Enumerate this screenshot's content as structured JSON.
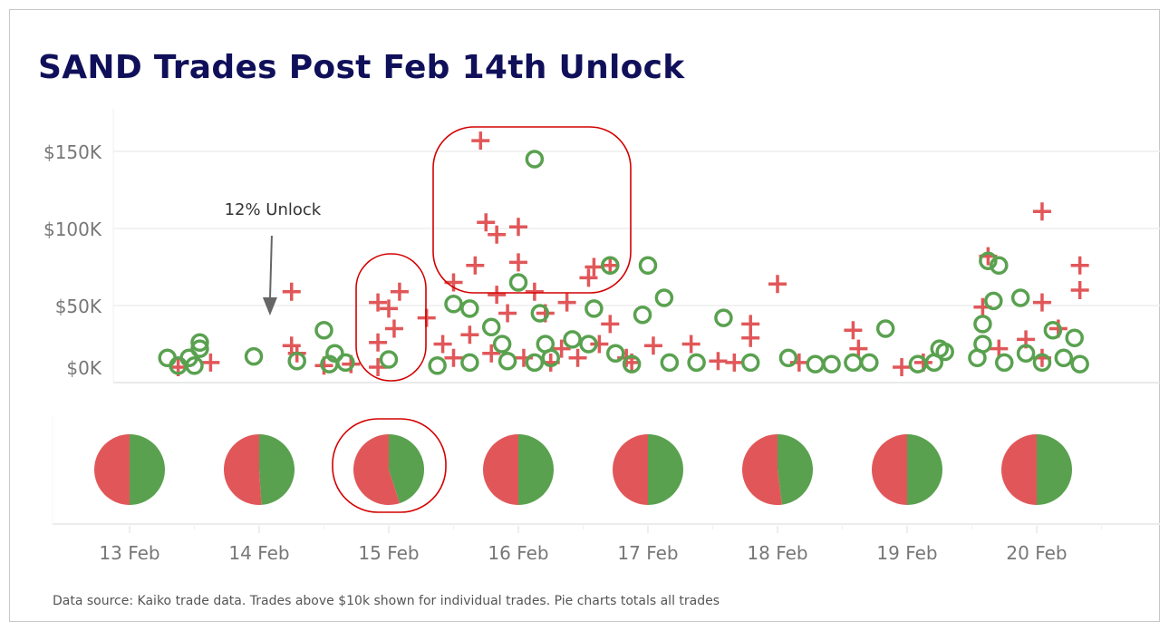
{
  "chart_data": {
    "type": "scatter",
    "title": "SAND Trades Post Feb 14th Unlock",
    "footer": "Data source: Kaiko trade data. Trades above $10k shown for individual trades. Pie charts totals all trades",
    "xlabel": "",
    "ylabel": "",
    "x_ticks": [
      "13 Feb",
      "14 Feb",
      "15 Feb",
      "16 Feb",
      "17 Feb",
      "18 Feb",
      "19 Feb",
      "20 Feb"
    ],
    "y_ticks": [
      {
        "value": 0,
        "label": "$0K"
      },
      {
        "value": 50,
        "label": "$50K"
      },
      {
        "value": 100,
        "label": "$100K"
      },
      {
        "value": 150,
        "label": "$150K"
      }
    ],
    "y_unit": "$K",
    "ylim": [
      0,
      165
    ],
    "grid": true,
    "colors": {
      "red": "#e15759",
      "green": "#59a14f",
      "highlight": "#d40000",
      "title": "#10105a"
    },
    "annotation": {
      "text": "12% Unlock",
      "date": "14 Feb 02:00"
    },
    "series": [
      {
        "marker": "plus",
        "color": "#e15759",
        "points": [
          [
            "13 Feb 15:00",
            13
          ],
          [
            "13 Feb 09:00",
            10
          ],
          [
            "14 Feb 06:00",
            59
          ],
          [
            "14 Feb 06:00",
            24
          ],
          [
            "14 Feb 07:00",
            19
          ],
          [
            "14 Feb 12:00",
            11
          ],
          [
            "14 Feb 17:00",
            12
          ],
          [
            "14 Feb 22:00",
            52
          ],
          [
            "15 Feb 02:00",
            59
          ],
          [
            "15 Feb 00:00",
            48
          ],
          [
            "15 Feb 01:00",
            35
          ],
          [
            "14 Feb 22:00",
            26
          ],
          [
            "14 Feb 22:00",
            10
          ],
          [
            "15 Feb 17:00",
            157
          ],
          [
            "15 Feb 18:00",
            104
          ],
          [
            "15 Feb 20:00",
            96
          ],
          [
            "16 Feb 00:00",
            101
          ],
          [
            "15 Feb 16:00",
            76
          ],
          [
            "16 Feb 00:00",
            78
          ],
          [
            "15 Feb 12:00",
            65
          ],
          [
            "15 Feb 20:00",
            57
          ],
          [
            "16 Feb 03:00",
            59
          ],
          [
            "16 Feb 09:00",
            52
          ],
          [
            "16 Feb 13:00",
            68
          ],
          [
            "16 Feb 14:00",
            75
          ],
          [
            "16 Feb 17:00",
            76
          ],
          [
            "16 Feb 17:00",
            38
          ],
          [
            "17 Feb 01:00",
            24
          ],
          [
            "17 Feb 08:00",
            25
          ],
          [
            "17 Feb 19:00",
            38
          ],
          [
            "17 Feb 19:00",
            29
          ],
          [
            "18 Feb 00:00",
            64
          ],
          [
            "18 Feb 14:00",
            34
          ],
          [
            "18 Feb 23:00",
            10
          ],
          [
            "19 Feb 15:00",
            82
          ],
          [
            "19 Feb 14:00",
            49
          ],
          [
            "20 Feb 01:00",
            111
          ],
          [
            "20 Feb 01:00",
            52
          ],
          [
            "20 Feb 08:00",
            76
          ],
          [
            "20 Feb 08:00",
            60
          ],
          [
            "20 Feb 04:00",
            35
          ],
          [
            "15 Feb 10:00",
            25
          ],
          [
            "15 Feb 12:00",
            16
          ],
          [
            "15 Feb 15:00",
            31
          ],
          [
            "15 Feb 22:00",
            45
          ],
          [
            "16 Feb 05:00",
            45
          ],
          [
            "16 Feb 11:00",
            16
          ],
          [
            "16 Feb 21:00",
            13
          ],
          [
            "17 Feb 13:00",
            14
          ],
          [
            "17 Feb 16:00",
            13
          ],
          [
            "18 Feb 04:00",
            13
          ],
          [
            "18 Feb 15:00",
            22
          ],
          [
            "19 Feb 03:00",
            13
          ],
          [
            "19 Feb 17:00",
            22
          ],
          [
            "19 Feb 22:00",
            28
          ],
          [
            "20 Feb 01:00",
            16
          ],
          [
            "15 Feb 07:00",
            42
          ],
          [
            "16 Feb 08:00",
            22
          ],
          [
            "16 Feb 01:00",
            16
          ],
          [
            "16 Feb 15:00",
            25
          ],
          [
            "15 Feb 19:00",
            19
          ],
          [
            "16 Feb 06:00",
            13
          ],
          [
            "16 Feb 20:00",
            16
          ]
        ]
      },
      {
        "marker": "circle",
        "color": "#59a14f",
        "points": [
          [
            "13 Feb 07:00",
            16
          ],
          [
            "13 Feb 09:00",
            11
          ],
          [
            "13 Feb 11:00",
            16
          ],
          [
            "13 Feb 13:00",
            22
          ],
          [
            "13 Feb 12:00",
            11
          ],
          [
            "13 Feb 13:00",
            26
          ],
          [
            "13 Feb 23:00",
            17
          ],
          [
            "14 Feb 07:00",
            14
          ],
          [
            "14 Feb 12:00",
            34
          ],
          [
            "14 Feb 13:00",
            12
          ],
          [
            "14 Feb 14:00",
            19
          ],
          [
            "14 Feb 16:00",
            13
          ],
          [
            "15 Feb 00:00",
            15
          ],
          [
            "16 Feb 03:00",
            145
          ],
          [
            "16 Feb 00:00",
            65
          ],
          [
            "16 Feb 04:00",
            45
          ],
          [
            "16 Feb 14:00",
            48
          ],
          [
            "16 Feb 17:00",
            76
          ],
          [
            "17 Feb 00:00",
            76
          ],
          [
            "17 Feb 03:00",
            55
          ],
          [
            "16 Feb 23:00",
            44
          ],
          [
            "17 Feb 14:00",
            42
          ],
          [
            "18 Feb 20:00",
            35
          ],
          [
            "19 Feb 14:00",
            38
          ],
          [
            "19 Feb 15:00",
            79
          ],
          [
            "19 Feb 17:00",
            76
          ],
          [
            "19 Feb 16:00",
            53
          ],
          [
            "19 Feb 21:00",
            55
          ],
          [
            "20 Feb 03:00",
            34
          ],
          [
            "20 Feb 07:00",
            29
          ],
          [
            "15 Feb 09:00",
            11
          ],
          [
            "15 Feb 12:00",
            51
          ],
          [
            "15 Feb 15:00",
            48
          ],
          [
            "15 Feb 19:00",
            36
          ],
          [
            "15 Feb 21:00",
            25
          ],
          [
            "16 Feb 05:00",
            25
          ],
          [
            "16 Feb 10:00",
            28
          ],
          [
            "16 Feb 13:00",
            25
          ],
          [
            "16 Feb 18:00",
            19
          ],
          [
            "17 Feb 04:00",
            13
          ],
          [
            "17 Feb 09:00",
            13
          ],
          [
            "17 Feb 19:00",
            13
          ],
          [
            "18 Feb 02:00",
            16
          ],
          [
            "18 Feb 07:00",
            12
          ],
          [
            "18 Feb 10:00",
            12
          ],
          [
            "18 Feb 14:00",
            13
          ],
          [
            "18 Feb 17:00",
            13
          ],
          [
            "19 Feb 05:00",
            13
          ],
          [
            "19 Feb 07:00",
            20
          ],
          [
            "19 Feb 13:00",
            16
          ],
          [
            "19 Feb 18:00",
            13
          ],
          [
            "19 Feb 22:00",
            19
          ],
          [
            "20 Feb 01:00",
            13
          ],
          [
            "20 Feb 05:00",
            16
          ],
          [
            "20 Feb 08:00",
            12
          ],
          [
            "15 Feb 22:00",
            14
          ],
          [
            "16 Feb 03:00",
            13
          ],
          [
            "16 Feb 06:00",
            16
          ],
          [
            "15 Feb 15:00",
            13
          ],
          [
            "16 Feb 21:00",
            12
          ],
          [
            "19 Feb 06:00",
            22
          ],
          [
            "19 Feb 02:00",
            12
          ],
          [
            "19 Feb 14:00",
            25
          ]
        ]
      }
    ],
    "pies": [
      {
        "date": "13 Feb",
        "green": 0.5,
        "red": 0.5
      },
      {
        "date": "14 Feb",
        "green": 0.49,
        "red": 0.51
      },
      {
        "date": "15 Feb",
        "green": 0.45,
        "red": 0.55
      },
      {
        "date": "16 Feb",
        "green": 0.5,
        "red": 0.5
      },
      {
        "date": "17 Feb",
        "green": 0.5,
        "red": 0.5
      },
      {
        "date": "18 Feb",
        "green": 0.48,
        "red": 0.52
      },
      {
        "date": "19 Feb",
        "green": 0.5,
        "red": 0.5
      },
      {
        "date": "20 Feb",
        "green": 0.5,
        "red": 0.5
      }
    ],
    "highlights": [
      "15 Feb trades",
      "15-16 Feb large trades",
      "15 Feb pie"
    ]
  }
}
